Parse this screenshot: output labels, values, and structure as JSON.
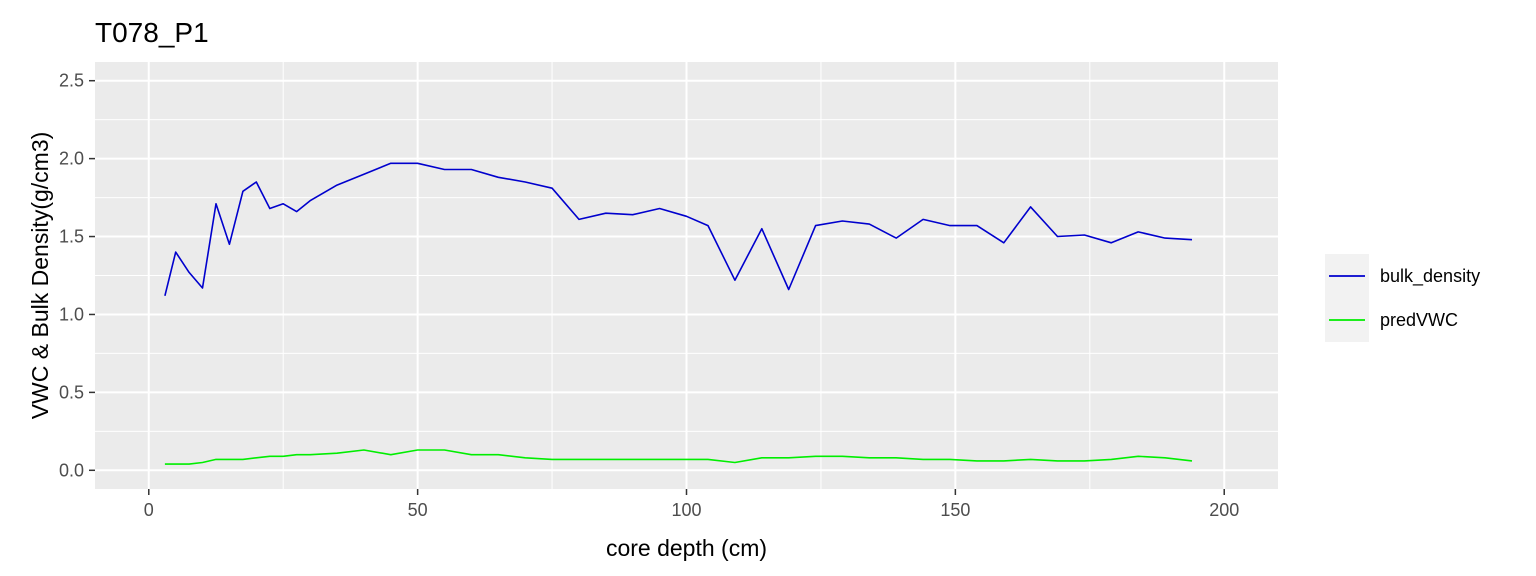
{
  "chart_data": {
    "type": "line",
    "title": "T078_P1",
    "xlabel": "core depth (cm)",
    "ylabel": "VWC & Bulk Density(g/cm3)",
    "xlim": [
      -10,
      210
    ],
    "ylim": [
      -0.12,
      2.62
    ],
    "x_ticks": [
      0,
      50,
      100,
      150,
      200
    ],
    "x_tick_labels": [
      "0",
      "50",
      "100",
      "150",
      "200"
    ],
    "y_ticks": [
      0.0,
      0.5,
      1.0,
      1.5,
      2.0,
      2.5
    ],
    "y_tick_labels": [
      "0.0",
      "0.5",
      "1.0",
      "1.5",
      "2.0",
      "2.5"
    ],
    "grid": true,
    "legend_position": "right",
    "background": "#ebebeb",
    "series": [
      {
        "name": "bulk_density",
        "color": "#0000cd",
        "x": [
          3,
          5,
          7.5,
          10,
          12.5,
          15,
          17.5,
          20,
          22.5,
          25,
          27.5,
          30,
          35,
          40,
          45,
          50,
          55,
          60,
          65,
          70,
          75,
          80,
          85,
          90,
          95,
          100,
          104,
          109,
          114,
          119,
          124,
          129,
          134,
          139,
          144,
          149,
          154,
          159,
          164,
          169,
          174,
          179,
          184,
          189,
          194
        ],
        "values": [
          1.12,
          1.4,
          1.27,
          1.17,
          1.71,
          1.45,
          1.79,
          1.85,
          1.68,
          1.71,
          1.66,
          1.73,
          1.83,
          1.9,
          1.97,
          1.97,
          1.93,
          1.93,
          1.88,
          1.85,
          1.81,
          1.61,
          1.65,
          1.64,
          1.68,
          1.63,
          1.57,
          1.22,
          1.55,
          1.16,
          1.57,
          1.6,
          1.58,
          1.49,
          1.61,
          1.57,
          1.57,
          1.46,
          1.69,
          1.5,
          1.51,
          1.46,
          1.53,
          1.49,
          1.48
        ]
      },
      {
        "name": "predVWC",
        "color": "#00ee00",
        "x": [
          3,
          5,
          7.5,
          10,
          12.5,
          15,
          17.5,
          20,
          22.5,
          25,
          27.5,
          30,
          35,
          40,
          45,
          50,
          55,
          60,
          65,
          70,
          75,
          80,
          85,
          90,
          95,
          100,
          104,
          109,
          114,
          119,
          124,
          129,
          134,
          139,
          144,
          149,
          154,
          159,
          164,
          169,
          174,
          179,
          184,
          189,
          194
        ],
        "values": [
          0.04,
          0.04,
          0.04,
          0.05,
          0.07,
          0.07,
          0.07,
          0.08,
          0.09,
          0.09,
          0.1,
          0.1,
          0.11,
          0.13,
          0.1,
          0.13,
          0.13,
          0.1,
          0.1,
          0.08,
          0.07,
          0.07,
          0.07,
          0.07,
          0.07,
          0.07,
          0.07,
          0.05,
          0.08,
          0.08,
          0.09,
          0.09,
          0.08,
          0.08,
          0.07,
          0.07,
          0.06,
          0.06,
          0.07,
          0.06,
          0.06,
          0.07,
          0.09,
          0.08,
          0.06
        ]
      }
    ]
  }
}
